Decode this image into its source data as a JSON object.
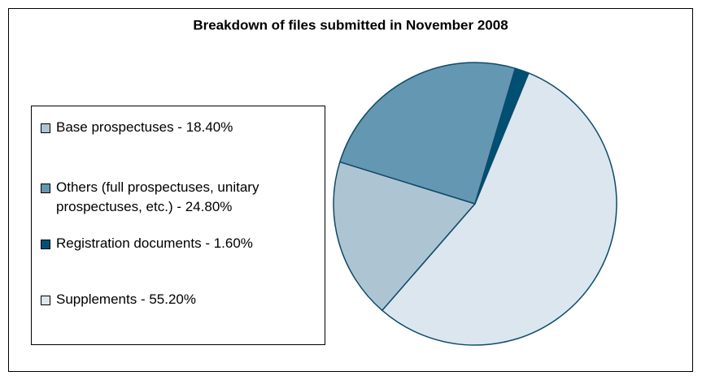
{
  "chart_data": {
    "type": "pie",
    "title": "Breakdown of files submitted in November 2008",
    "categories": [
      "Base prospectuses - 18.40%",
      "Others (full prospectuses, unitary prospectuses, etc.) - 24.80%",
      "Registration documents - 1.60%",
      "Supplements - 55.20%"
    ],
    "values": [
      18.4,
      24.8,
      1.6,
      55.2
    ],
    "colors": [
      "#adc5d3",
      "#6497b1",
      "#005074",
      "#dce6ee"
    ],
    "legend": "left"
  }
}
